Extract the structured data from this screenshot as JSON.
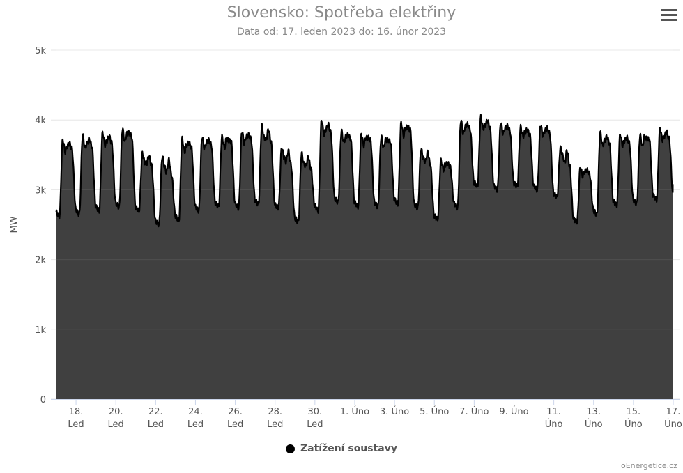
{
  "header": {
    "title": "Slovensko: Spotřeba elektřiny",
    "subtitle": "Data od: 17. leden 2023 do: 16. únor 2023"
  },
  "legend": {
    "label": "Zatížení soustavy"
  },
  "credits": "oEnergetice.cz",
  "chart_data": {
    "type": "area",
    "title": "Slovensko: Spotřeba elektřiny",
    "subtitle": "Data od: 17. leden 2023 do: 16. únor 2023",
    "xlabel": "",
    "ylabel": "MW",
    "ylim": [
      0,
      5000
    ],
    "yticks": [
      0,
      1000,
      2000,
      3000,
      4000,
      5000
    ],
    "ytick_labels": [
      "0",
      "1k",
      "2k",
      "3k",
      "4k",
      "5k"
    ],
    "xlim": [
      "2023-01-17",
      "2023-02-17"
    ],
    "xticks": [
      {
        "date": "2023-01-18",
        "line1": "18.",
        "line2": "Led"
      },
      {
        "date": "2023-01-20",
        "line1": "20.",
        "line2": "Led"
      },
      {
        "date": "2023-01-22",
        "line1": "22.",
        "line2": "Led"
      },
      {
        "date": "2023-01-24",
        "line1": "24.",
        "line2": "Led"
      },
      {
        "date": "2023-01-26",
        "line1": "26.",
        "line2": "Led"
      },
      {
        "date": "2023-01-28",
        "line1": "28.",
        "line2": "Led"
      },
      {
        "date": "2023-01-30",
        "line1": "30.",
        "line2": "Led"
      },
      {
        "date": "2023-02-01",
        "line1": "1. Úno",
        "line2": ""
      },
      {
        "date": "2023-02-03",
        "line1": "3. Úno",
        "line2": ""
      },
      {
        "date": "2023-02-05",
        "line1": "5. Úno",
        "line2": ""
      },
      {
        "date": "2023-02-07",
        "line1": "7. Úno",
        "line2": ""
      },
      {
        "date": "2023-02-09",
        "line1": "9. Úno",
        "line2": ""
      },
      {
        "date": "2023-02-11",
        "line1": "11.",
        "line2": "Úno"
      },
      {
        "date": "2023-02-13",
        "line1": "13.",
        "line2": "Úno"
      },
      {
        "date": "2023-02-15",
        "line1": "15.",
        "line2": "Úno"
      },
      {
        "date": "2023-02-17",
        "line1": "17.",
        "line2": "Úno"
      }
    ],
    "grid": true,
    "legend_position": "bottom",
    "series_color": "#000000",
    "fill_color": "#404040",
    "series": [
      {
        "name": "Zatížení soustavy",
        "daily": [
          {
            "date": "2023-01-17",
            "min": 2620,
            "peak1": 3720,
            "peak2": 3620
          },
          {
            "date": "2023-01-18",
            "min": 2650,
            "peak1": 3780,
            "peak2": 3660
          },
          {
            "date": "2023-01-19",
            "min": 2700,
            "peak1": 3820,
            "peak2": 3700
          },
          {
            "date": "2023-01-20",
            "min": 2750,
            "peak1": 3870,
            "peak2": 3800
          },
          {
            "date": "2023-01-21",
            "min": 2700,
            "peak1": 3520,
            "peak2": 3380
          },
          {
            "date": "2023-01-22",
            "min": 2500,
            "peak1": 3480,
            "peak2": 3250
          },
          {
            "date": "2023-01-23",
            "min": 2560,
            "peak1": 3730,
            "peak2": 3640
          },
          {
            "date": "2023-01-24",
            "min": 2700,
            "peak1": 3760,
            "peak2": 3680
          },
          {
            "date": "2023-01-25",
            "min": 2760,
            "peak1": 3760,
            "peak2": 3720
          },
          {
            "date": "2023-01-26",
            "min": 2740,
            "peak1": 3840,
            "peak2": 3760
          },
          {
            "date": "2023-01-27",
            "min": 2790,
            "peak1": 3920,
            "peak2": 3720
          },
          {
            "date": "2023-01-28",
            "min": 2740,
            "peak1": 3600,
            "peak2": 3400
          },
          {
            "date": "2023-01-29",
            "min": 2540,
            "peak1": 3520,
            "peak2": 3340
          },
          {
            "date": "2023-01-30",
            "min": 2700,
            "peak1": 4000,
            "peak2": 3860
          },
          {
            "date": "2023-01-31",
            "min": 2820,
            "peak1": 3840,
            "peak2": 3760
          },
          {
            "date": "2023-02-01",
            "min": 2760,
            "peak1": 3800,
            "peak2": 3740
          },
          {
            "date": "2023-02-02",
            "min": 2760,
            "peak1": 3760,
            "peak2": 3720
          },
          {
            "date": "2023-02-03",
            "min": 2800,
            "peak1": 3960,
            "peak2": 3880
          },
          {
            "date": "2023-02-04",
            "min": 2740,
            "peak1": 3580,
            "peak2": 3400
          },
          {
            "date": "2023-02-05",
            "min": 2580,
            "peak1": 3420,
            "peak2": 3360
          },
          {
            "date": "2023-02-06",
            "min": 2740,
            "peak1": 4000,
            "peak2": 3900
          },
          {
            "date": "2023-02-07",
            "min": 3050,
            "peak1": 4040,
            "peak2": 3920
          },
          {
            "date": "2023-02-08",
            "min": 3000,
            "peak1": 3960,
            "peak2": 3880
          },
          {
            "date": "2023-02-09",
            "min": 3050,
            "peak1": 3900,
            "peak2": 3820
          },
          {
            "date": "2023-02-10",
            "min": 3000,
            "peak1": 3930,
            "peak2": 3840
          },
          {
            "date": "2023-02-11",
            "min": 2900,
            "peak1": 3600,
            "peak2": 3380
          },
          {
            "date": "2023-02-12",
            "min": 2540,
            "peak1": 3320,
            "peak2": 3260
          },
          {
            "date": "2023-02-13",
            "min": 2640,
            "peak1": 3820,
            "peak2": 3700
          },
          {
            "date": "2023-02-14",
            "min": 2780,
            "peak1": 3800,
            "peak2": 3700
          },
          {
            "date": "2023-02-15",
            "min": 2800,
            "peak1": 3780,
            "peak2": 3760
          },
          {
            "date": "2023-02-16",
            "min": 2860,
            "peak1": 3880,
            "peak2": 3760
          }
        ],
        "last_value": 3080
      }
    ]
  }
}
